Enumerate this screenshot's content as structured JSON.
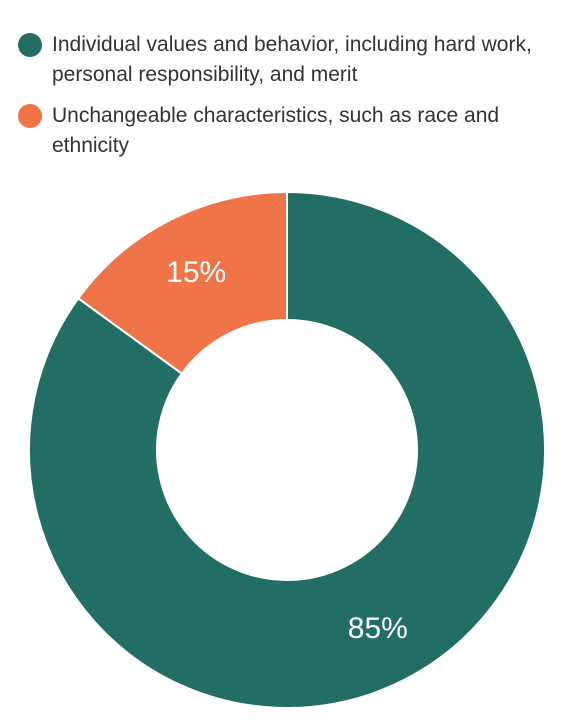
{
  "chart_data": {
    "type": "pie",
    "donut": true,
    "title": "",
    "legend_position": "top",
    "series": [
      {
        "name": "Individual values and behavior, including hard work, personal responsibility, and merit",
        "value": 85,
        "label": "85%",
        "color": "#226e64"
      },
      {
        "name": "Unchangeable characteristics, such as race and ethnicity",
        "value": 15,
        "label": "15%",
        "color": "#ef7549"
      }
    ]
  }
}
